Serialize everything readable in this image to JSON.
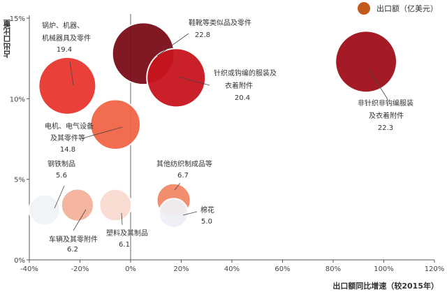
{
  "legend": {
    "label": "出口额（亿美元）",
    "color": "#c45a1d"
  },
  "chart_data": {
    "type": "scatter",
    "xlabel": "出口额同比增速（较2015年）",
    "ylabel": "占出口比重",
    "xlim": [
      -40,
      120
    ],
    "ylim": [
      0,
      15
    ],
    "x_ticks": [
      "-40%",
      "-20%",
      "0%",
      "20%",
      "40%",
      "60%",
      "80%",
      "100%",
      "120%"
    ],
    "y_ticks": [
      "0%",
      "5%",
      "10%",
      "15%"
    ],
    "size_measure": "出口额（亿美元）",
    "points": [
      {
        "name": "鞋靴等类似品及零件",
        "value": "22.8",
        "x": 5,
        "y": 12.8,
        "color": "#7a0d18"
      },
      {
        "name": "锅炉、机器、机械器具及零件",
        "value": "19.4",
        "x": -25,
        "y": 10.8,
        "color": "#e8372f"
      },
      {
        "name": "针织或钩编的服装及衣着附件",
        "value": "20.4",
        "x": 18,
        "y": 11.3,
        "color": "#c8151f"
      },
      {
        "name": "非针织非钩编服装及衣着附件",
        "value": "22.3",
        "x": 93,
        "y": 12.3,
        "color": "#a00f1b"
      },
      {
        "name": "电机、电气设备及其零件等",
        "value": "14.8",
        "x": -6,
        "y": 8.4,
        "color": "#f26547"
      },
      {
        "name": "钢铁制品",
        "value": "5.6",
        "x": -34,
        "y": 3.1,
        "color": "#f0f3f7"
      },
      {
        "name": "车辆及其零附件",
        "value": "6.2",
        "x": -21,
        "y": 3.4,
        "color": "#f4b39c"
      },
      {
        "name": "塑料及其制品",
        "value": "6.1",
        "x": -6,
        "y": 3.4,
        "color": "#f9dcd1"
      },
      {
        "name": "其他纺织制成品等",
        "value": "6.7",
        "x": 17,
        "y": 3.7,
        "color": "#f28766"
      },
      {
        "name": "棉花",
        "value": "5.0",
        "x": 17,
        "y": 2.9,
        "color": "#eef0f5"
      }
    ],
    "grid": false,
    "legend_position": "top-right"
  }
}
